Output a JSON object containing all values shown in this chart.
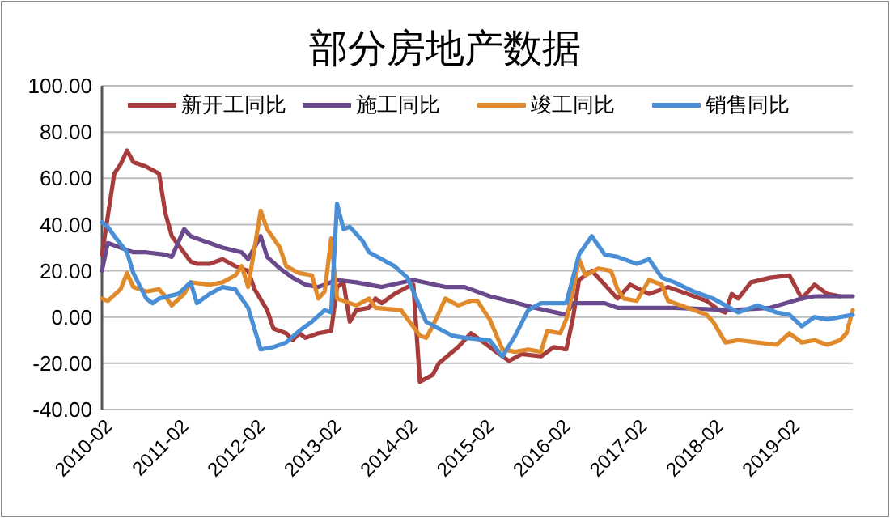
{
  "chart_data": {
    "type": "line",
    "title": "部分房地产数据",
    "xlim": [
      "2010-02",
      "2019-12"
    ],
    "xticks": [
      "2010-02",
      "2011-02",
      "2012-02",
      "2013-02",
      "2014-02",
      "2015-02",
      "2016-02",
      "2017-02",
      "2018-02",
      "2019-02"
    ],
    "ylim": [
      -40,
      100
    ],
    "yticks": [
      {
        "value": -40,
        "label": "-40.00"
      },
      {
        "value": -20,
        "label": "-20.00"
      },
      {
        "value": 0,
        "label": "0.00"
      },
      {
        "value": 20,
        "label": "20.00"
      },
      {
        "value": 40,
        "label": "40.00"
      },
      {
        "value": 60,
        "label": "60.00"
      },
      {
        "value": 80,
        "label": "80.00"
      },
      {
        "value": 100,
        "label": "100.00"
      }
    ],
    "grid": "y",
    "legend": "top",
    "marker": "none",
    "line_style": "solid",
    "series": [
      {
        "name": "新开工同比",
        "color": "#a63c3c",
        "x": [
          "2010-02",
          "2010-04",
          "2010-05",
          "2010-06",
          "2010-07",
          "2010-09",
          "2010-11",
          "2010-12",
          "2011-01",
          "2011-04",
          "2011-05",
          "2011-07",
          "2011-09",
          "2011-11",
          "2012-01",
          "2012-02",
          "2012-04",
          "2012-05",
          "2012-07",
          "2012-08",
          "2012-09",
          "2012-10",
          "2012-12",
          "2013-02",
          "2013-03",
          "2013-04",
          "2013-05",
          "2013-06",
          "2013-08",
          "2013-09",
          "2013-10",
          "2013-12",
          "2014-02",
          "2014-03",
          "2014-04",
          "2014-06",
          "2014-07",
          "2014-10",
          "2014-12",
          "2015-02",
          "2015-04",
          "2015-06",
          "2015-08",
          "2015-11",
          "2016-01",
          "2016-03",
          "2016-04",
          "2016-05",
          "2016-07",
          "2016-09",
          "2016-11",
          "2017-01",
          "2017-04",
          "2017-07",
          "2017-10",
          "2018-01",
          "2018-03",
          "2018-04",
          "2018-05",
          "2018-06",
          "2018-08",
          "2018-11",
          "2019-02",
          "2019-04",
          "2019-06",
          "2019-08",
          "2019-10"
        ],
        "values": [
          27,
          62,
          66,
          72,
          67,
          65,
          62,
          45,
          35,
          24,
          23,
          23,
          25,
          22,
          20,
          12,
          3,
          -5,
          -7,
          -10,
          -7,
          -9,
          -7,
          -6,
          13,
          15,
          -2,
          3,
          4,
          8,
          6,
          10,
          13,
          14,
          -28,
          -25,
          -20,
          -13,
          -7,
          -11,
          -15,
          -19,
          -16,
          -17,
          -13,
          -14,
          -1,
          16,
          20,
          14,
          8,
          14,
          10,
          13,
          10,
          7,
          3,
          2,
          10,
          8,
          15,
          17,
          18,
          8,
          14,
          10,
          9
        ]
      },
      {
        "name": "施工同比",
        "color": "#6a4a8c",
        "x": [
          "2010-02",
          "2010-03",
          "2010-06",
          "2010-07",
          "2010-09",
          "2010-12",
          "2011-01",
          "2011-03",
          "2011-04",
          "2011-07",
          "2011-09",
          "2011-12",
          "2012-01",
          "2012-03",
          "2012-04",
          "2012-06",
          "2012-08",
          "2012-10",
          "2012-12",
          "2013-03",
          "2013-06",
          "2013-10",
          "2014-03",
          "2014-08",
          "2014-11",
          "2015-03",
          "2015-06",
          "2015-10",
          "2016-03",
          "2016-04",
          "2016-09",
          "2016-11",
          "2017-08",
          "2018-05",
          "2018-11",
          "2019-04",
          "2019-06",
          "2019-12"
        ],
        "values": [
          20,
          32,
          29,
          28,
          28,
          27,
          26,
          38,
          35,
          32,
          30,
          28,
          25,
          35,
          26,
          21,
          17,
          14,
          13,
          16,
          15,
          13,
          16,
          13,
          13,
          9,
          7,
          4,
          1,
          6,
          6,
          4,
          4,
          3,
          4,
          8,
          9,
          9
        ]
      },
      {
        "name": "竣工同比",
        "color": "#e08a2c",
        "x": [
          "2010-02",
          "2010-03",
          "2010-05",
          "2010-06",
          "2010-07",
          "2010-09",
          "2010-11",
          "2010-12",
          "2011-01",
          "2011-03",
          "2011-04",
          "2011-07",
          "2011-09",
          "2011-11",
          "2011-12",
          "2012-01",
          "2012-03",
          "2012-04",
          "2012-06",
          "2012-07",
          "2012-09",
          "2012-11",
          "2012-12",
          "2013-01",
          "2013-02",
          "2013-03",
          "2013-06",
          "2013-08",
          "2013-09",
          "2014-01",
          "2014-04",
          "2014-05",
          "2014-06",
          "2014-08",
          "2014-10",
          "2014-12",
          "2015-01",
          "2015-03",
          "2015-05",
          "2015-07",
          "2015-09",
          "2015-11",
          "2015-12",
          "2016-02",
          "2016-03",
          "2016-04",
          "2016-05",
          "2016-06",
          "2016-08",
          "2016-10",
          "2016-11",
          "2016-12",
          "2017-02",
          "2017-04",
          "2017-06",
          "2017-07",
          "2017-11",
          "2018-01",
          "2018-02",
          "2018-04",
          "2018-06",
          "2018-09",
          "2018-12",
          "2019-02",
          "2019-04",
          "2019-06",
          "2019-08",
          "2019-10",
          "2019-11",
          "2019-12"
        ],
        "values": [
          8,
          7,
          12,
          19,
          13,
          11,
          12,
          9,
          5,
          10,
          15,
          14,
          15,
          18,
          22,
          13,
          46,
          38,
          30,
          22,
          19,
          18,
          8,
          11,
          34,
          8,
          5,
          8,
          4,
          3,
          -8,
          -9,
          -4,
          8,
          5,
          7,
          7,
          -1,
          -14,
          -15,
          -14,
          -15,
          -6,
          -7,
          -1,
          11,
          25,
          18,
          21,
          20,
          12,
          8,
          7,
          16,
          14,
          7,
          3,
          1,
          -2,
          -11,
          -10,
          -11,
          -12,
          -7,
          -11,
          -10,
          -12,
          -10,
          -7,
          3
        ]
      },
      {
        "name": "销售同比",
        "color": "#4a8fd6",
        "x": [
          "2010-02",
          "2010-03",
          "2010-04",
          "2010-06",
          "2010-07",
          "2010-09",
          "2010-10",
          "2010-11",
          "2011-02",
          "2011-04",
          "2011-05",
          "2011-07",
          "2011-09",
          "2011-11",
          "2011-12",
          "2012-01",
          "2012-03",
          "2012-05",
          "2012-07",
          "2012-09",
          "2012-11",
          "2013-01",
          "2013-02",
          "2013-03",
          "2013-04",
          "2013-05",
          "2013-07",
          "2013-08",
          "2013-10",
          "2013-12",
          "2014-02",
          "2014-03",
          "2014-05",
          "2014-07",
          "2014-09",
          "2014-11",
          "2015-03",
          "2015-05",
          "2015-07",
          "2015-09",
          "2015-11",
          "2016-03",
          "2016-05",
          "2016-07",
          "2016-09",
          "2016-11",
          "2017-02",
          "2017-04",
          "2017-06",
          "2017-08",
          "2017-11",
          "2018-01",
          "2018-02",
          "2018-06",
          "2018-09",
          "2018-12",
          "2019-02",
          "2019-04",
          "2019-06",
          "2019-08",
          "2019-10",
          "2019-12"
        ],
        "values": [
          41,
          39,
          35,
          28,
          19,
          8,
          6,
          8,
          10,
          15,
          6,
          10,
          13,
          12,
          8,
          4,
          -14,
          -13,
          -11,
          -6,
          -2,
          3,
          2,
          49,
          38,
          39,
          33,
          28,
          25,
          22,
          17,
          11,
          -2,
          -5,
          -8,
          -9,
          -10,
          -17,
          -8,
          3,
          6,
          6,
          27,
          35,
          27,
          26,
          23,
          25,
          17,
          15,
          11,
          9,
          8,
          2,
          5,
          2,
          1,
          -4,
          0,
          -1,
          0,
          1
        ]
      }
    ]
  }
}
